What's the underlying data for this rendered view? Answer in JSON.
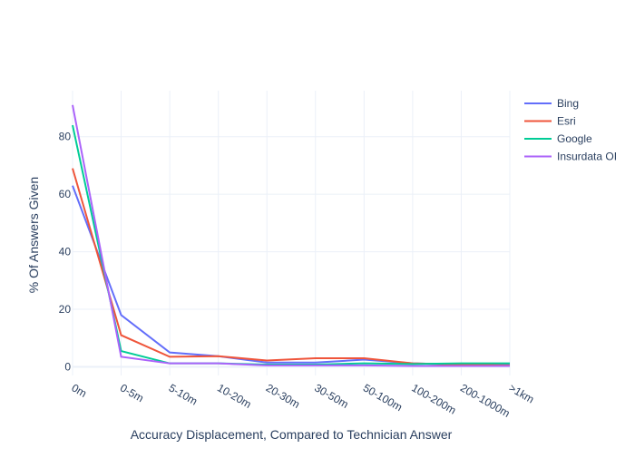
{
  "chart_data": {
    "type": "line",
    "title": "",
    "xlabel": "Accuracy Displacement, Compared to Technician Answer",
    "ylabel": "% Of Answers Given",
    "categories": [
      "0m",
      "0-5m",
      "5-10m",
      "10-20m",
      "20-30m",
      "30-50m",
      "50-100m",
      "100-200m",
      "200-1000m",
      ">1km"
    ],
    "ylim": [
      -3,
      96
    ],
    "yticks": [
      0,
      20,
      40,
      60,
      80
    ],
    "grid": true,
    "legend_position": "top-right",
    "series": [
      {
        "name": "Bing",
        "color": "#636efa",
        "values": [
          63,
          18,
          5,
          3.7,
          1.5,
          1.5,
          2.5,
          1.2,
          0.8,
          0.8
        ]
      },
      {
        "name": "Esri",
        "color": "#ef553b",
        "values": [
          69,
          11,
          3.5,
          3.7,
          2.2,
          3,
          3,
          1.2,
          0.8,
          0.5
        ]
      },
      {
        "name": "Google",
        "color": "#00cc96",
        "values": [
          84,
          5.5,
          1.2,
          1.2,
          0.8,
          0.8,
          1.2,
          1,
          1.2,
          1.2
        ]
      },
      {
        "name": "Insurdata OI",
        "color": "#ab63fa",
        "values": [
          91,
          3.5,
          1.2,
          1.2,
          0.5,
          0.5,
          0.5,
          0.3,
          0.3,
          0.3
        ]
      }
    ]
  }
}
